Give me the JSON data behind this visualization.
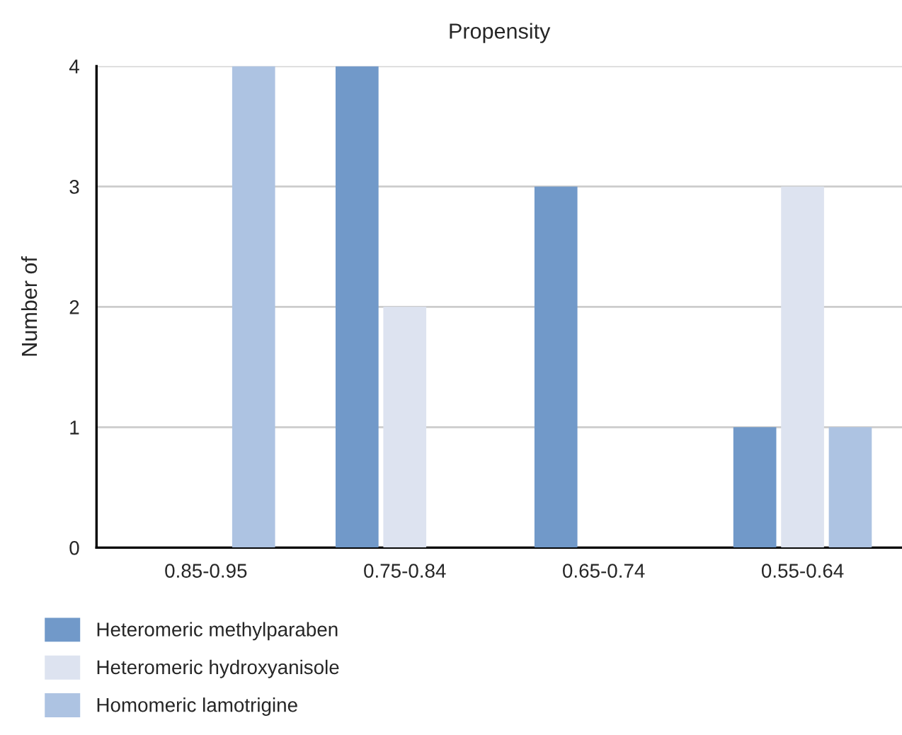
{
  "chart_data": {
    "type": "bar",
    "title": "Propensity",
    "ylabel": "Number of",
    "categories": [
      "0.85-0.95",
      "0.75-0.84",
      "0.65-0.74",
      "0.55-0.64"
    ],
    "series": [
      {
        "name": "Heteromeric methylparaben",
        "color": "#7199c9",
        "values": [
          null,
          4,
          3,
          1
        ]
      },
      {
        "name": "Heteromeric hydroxyanisole",
        "color": "#dde3f0",
        "values": [
          null,
          2,
          null,
          3
        ]
      },
      {
        "name": "Homomeric lamotrigine",
        "color": "#adc3e2",
        "values": [
          4,
          null,
          null,
          1
        ]
      }
    ],
    "ylim": [
      0,
      4
    ],
    "yticks": [
      0,
      1,
      2,
      3,
      4
    ],
    "grid": "y",
    "legend": "bottom left"
  }
}
